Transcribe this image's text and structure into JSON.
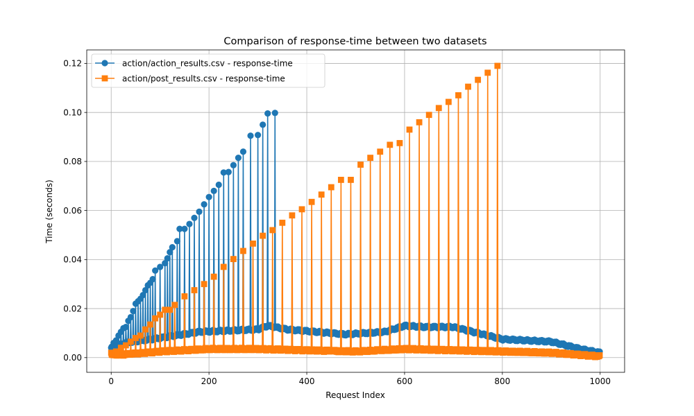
{
  "chart_data": {
    "type": "line",
    "title": "Comparison of response-time between two datasets",
    "xlabel": "Request Index",
    "ylabel": "Time (seconds)",
    "xlim": [
      -50,
      1050
    ],
    "ylim": [
      -0.006,
      0.1255
    ],
    "xticks": [
      0,
      200,
      400,
      600,
      800,
      1000
    ],
    "xtick_labels": [
      "0",
      "200",
      "400",
      "600",
      "800",
      "1000"
    ],
    "yticks": [
      0.0,
      0.02,
      0.04,
      0.06,
      0.08,
      0.1,
      0.12
    ],
    "ytick_labels": [
      "0.00",
      "0.02",
      "0.04",
      "0.06",
      "0.08",
      "0.10",
      "0.12"
    ],
    "grid": true,
    "legend_position": "upper-left",
    "series": [
      {
        "name": "action/action_results.csv - response-time",
        "color": "#1f77b4",
        "marker": "circle",
        "n_points": 1000,
        "baseline": [
          [
            0,
            0.004
          ],
          [
            30,
            0.006
          ],
          [
            100,
            0.008
          ],
          [
            180,
            0.0105
          ],
          [
            300,
            0.0115
          ],
          [
            320,
            0.013
          ],
          [
            360,
            0.0115
          ],
          [
            480,
            0.0095
          ],
          [
            560,
            0.0105
          ],
          [
            600,
            0.013
          ],
          [
            640,
            0.0125
          ],
          [
            700,
            0.0125
          ],
          [
            800,
            0.0075
          ],
          [
            900,
            0.0065
          ],
          [
            960,
            0.0035
          ],
          [
            1000,
            0.002
          ]
        ],
        "spikes": [
          [
            0,
            0.004
          ],
          [
            5,
            0.006
          ],
          [
            10,
            0.007
          ],
          [
            15,
            0.009
          ],
          [
            20,
            0.0105
          ],
          [
            25,
            0.012
          ],
          [
            30,
            0.0125
          ],
          [
            35,
            0.015
          ],
          [
            40,
            0.0165
          ],
          [
            45,
            0.019
          ],
          [
            50,
            0.022
          ],
          [
            55,
            0.023
          ],
          [
            60,
            0.024
          ],
          [
            65,
            0.0255
          ],
          [
            70,
            0.0275
          ],
          [
            75,
            0.0295
          ],
          [
            80,
            0.0305
          ],
          [
            85,
            0.032
          ],
          [
            90,
            0.0355
          ],
          [
            100,
            0.037
          ],
          [
            110,
            0.0385
          ],
          [
            115,
            0.0405
          ],
          [
            120,
            0.043
          ],
          [
            125,
            0.045
          ],
          [
            135,
            0.0475
          ],
          [
            140,
            0.0525
          ],
          [
            150,
            0.0525
          ],
          [
            160,
            0.0545
          ],
          [
            170,
            0.057
          ],
          [
            180,
            0.0595
          ],
          [
            190,
            0.0625
          ],
          [
            200,
            0.0655
          ],
          [
            210,
            0.068
          ],
          [
            220,
            0.0705
          ],
          [
            230,
            0.0755
          ],
          [
            240,
            0.0757
          ],
          [
            250,
            0.0785
          ],
          [
            260,
            0.0815
          ],
          [
            270,
            0.084
          ],
          [
            285,
            0.0905
          ],
          [
            300,
            0.0908
          ],
          [
            310,
            0.095
          ],
          [
            320,
            0.0996
          ],
          [
            335,
            0.0998
          ]
        ]
      },
      {
        "name": "action/post_results.csv - response-time",
        "color": "#ff7f0e",
        "marker": "square",
        "n_points": 1000,
        "baseline": [
          [
            0,
            0.001
          ],
          [
            40,
            0.0015
          ],
          [
            100,
            0.0025
          ],
          [
            200,
            0.0035
          ],
          [
            300,
            0.0035
          ],
          [
            400,
            0.003
          ],
          [
            500,
            0.0025
          ],
          [
            600,
            0.0035
          ],
          [
            700,
            0.003
          ],
          [
            800,
            0.0025
          ],
          [
            900,
            0.002
          ],
          [
            1000,
            0.0005
          ]
        ],
        "spikes": [
          [
            0,
            0.002
          ],
          [
            10,
            0.0025
          ],
          [
            20,
            0.004
          ],
          [
            30,
            0.005
          ],
          [
            40,
            0.0065
          ],
          [
            50,
            0.008
          ],
          [
            60,
            0.009
          ],
          [
            70,
            0.0115
          ],
          [
            80,
            0.0135
          ],
          [
            90,
            0.016
          ],
          [
            100,
            0.0175
          ],
          [
            110,
            0.0195
          ],
          [
            120,
            0.0195
          ],
          [
            130,
            0.0215
          ],
          [
            150,
            0.025
          ],
          [
            170,
            0.0275
          ],
          [
            190,
            0.03
          ],
          [
            210,
            0.033
          ],
          [
            230,
            0.037
          ],
          [
            250,
            0.0402
          ],
          [
            270,
            0.0435
          ],
          [
            290,
            0.0465
          ],
          [
            310,
            0.0497
          ],
          [
            330,
            0.052
          ],
          [
            350,
            0.055
          ],
          [
            370,
            0.058
          ],
          [
            390,
            0.0605
          ],
          [
            410,
            0.0635
          ],
          [
            430,
            0.0665
          ],
          [
            450,
            0.0695
          ],
          [
            470,
            0.0725
          ],
          [
            490,
            0.0725
          ],
          [
            510,
            0.0787
          ],
          [
            530,
            0.0815
          ],
          [
            550,
            0.084
          ],
          [
            570,
            0.0868
          ],
          [
            590,
            0.0875
          ],
          [
            610,
            0.093
          ],
          [
            630,
            0.096
          ],
          [
            650,
            0.099
          ],
          [
            670,
            0.1018
          ],
          [
            690,
            0.1043
          ],
          [
            710,
            0.107
          ],
          [
            730,
            0.1105
          ],
          [
            750,
            0.1133
          ],
          [
            770,
            0.1162
          ],
          [
            790,
            0.119
          ]
        ]
      }
    ]
  }
}
